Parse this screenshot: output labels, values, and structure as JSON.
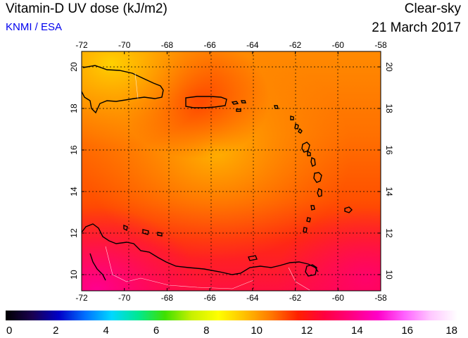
{
  "header": {
    "title": "Vitamin-D UV dose (kJ/m2)",
    "credit": "KNMI / ESA",
    "condition": "Clear-sky",
    "date": "21 March 2017"
  },
  "map": {
    "lon_ticks": [
      "-72",
      "-70",
      "-68",
      "-66",
      "-64",
      "-62",
      "-60",
      "-58"
    ],
    "lat_ticks": [
      "10",
      "12",
      "14",
      "16",
      "18",
      "20"
    ],
    "lon_range": [
      -72,
      -58
    ],
    "lat_range": [
      9.5,
      20.5
    ],
    "grid": true
  },
  "colorbar": {
    "labels": [
      "0",
      "2",
      "4",
      "6",
      "8",
      "10",
      "12",
      "14",
      "16",
      "18"
    ],
    "colors": [
      "#000000",
      "#1a0050",
      "#0000c8",
      "#0070ff",
      "#00d8ff",
      "#00e890",
      "#40e000",
      "#c8f000",
      "#ffff00",
      "#ffc000",
      "#ff7800",
      "#ff2000",
      "#ff0040",
      "#ff0080",
      "#ff00c8",
      "#ff60ff",
      "#ffc8ff",
      "#ffffff"
    ]
  }
}
